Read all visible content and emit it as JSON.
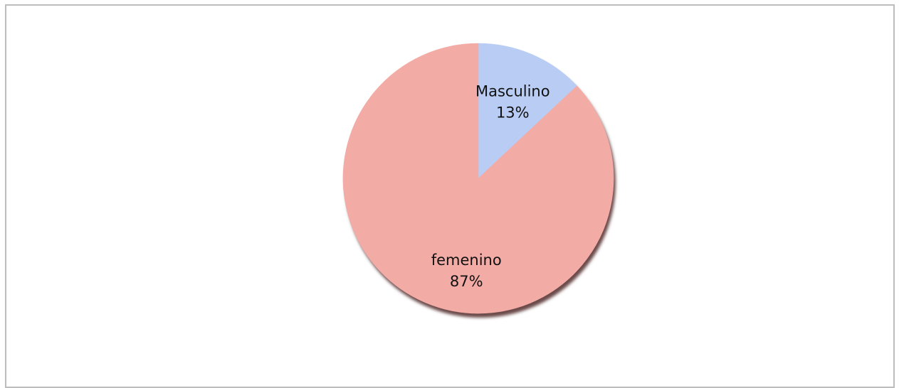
{
  "chart_data": {
    "type": "pie",
    "title": "",
    "start_angle_deg": 0,
    "direction": "clockwise",
    "slices": [
      {
        "label": "Masculino",
        "value": 13,
        "value_label": "13%",
        "color": "#b9cdf4"
      },
      {
        "label": "femenino",
        "value": 87,
        "value_label": "87%",
        "color": "#f3aba6"
      }
    ],
    "shadow_color": "#6b4a48",
    "edge_color": "#c98f8b"
  }
}
